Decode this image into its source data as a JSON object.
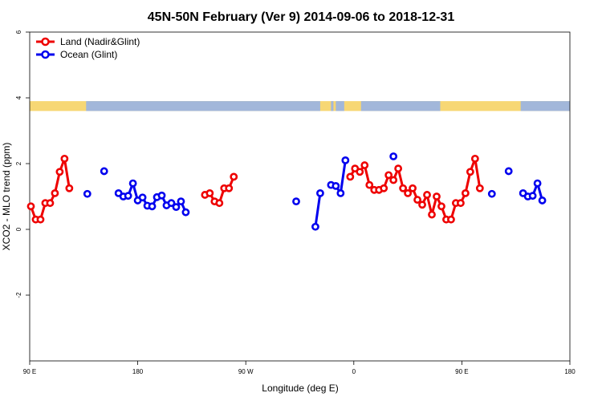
{
  "chart_data": {
    "type": "line",
    "title": "45N-50N February (Ver 9)   2014-09-06 to 2018-12-31",
    "xlabel": "Longitude (deg E)",
    "ylabel": "XCO2 - MLO trend (ppm)",
    "xlim": [
      90,
      540
    ],
    "ylim": [
      -4,
      6
    ],
    "x_ticks": [
      {
        "value": 90,
        "label": "90 E"
      },
      {
        "value": 180,
        "label": "180"
      },
      {
        "value": 270,
        "label": "90 W"
      },
      {
        "value": 360,
        "label": "0"
      },
      {
        "value": 450,
        "label": "90 E"
      },
      {
        "value": 540,
        "label": "180"
      }
    ],
    "y_ticks": [
      {
        "value": -2,
        "label": "-2"
      },
      {
        "value": 0,
        "label": "0"
      },
      {
        "value": 2,
        "label": "2"
      },
      {
        "value": 4,
        "label": "4"
      },
      {
        "value": 6,
        "label": "6"
      }
    ],
    "legend": {
      "position": "top-left",
      "entries": [
        {
          "name": "Land (Nadir&Glint)",
          "color": "#ee0000"
        },
        {
          "name": "Ocean (Glint)",
          "color": "#0000ee"
        }
      ]
    },
    "land_ocean_strip": {
      "y_range": [
        3.6,
        3.9
      ],
      "land_color": "#f7d774",
      "ocean_color": "#a2b7da",
      "ocean_spans": [
        [
          137,
          332
        ],
        [
          341,
          343
        ],
        [
          345,
          352
        ],
        [
          366,
          432
        ],
        [
          499,
          540
        ]
      ]
    },
    "series": [
      {
        "name": "Land (Nadir&Glint)",
        "color": "#ee0000",
        "segments": [
          [
            [
              91,
              0.7
            ],
            [
              95,
              0.3
            ],
            [
              99,
              0.3
            ],
            [
              103,
              0.8
            ],
            [
              107,
              0.8
            ],
            [
              111,
              1.1
            ],
            [
              115,
              1.75
            ],
            [
              119,
              2.15
            ],
            [
              123,
              1.25
            ]
          ],
          [
            [
              236,
              1.05
            ],
            [
              240,
              1.1
            ],
            [
              244,
              0.85
            ],
            [
              248,
              0.8
            ],
            [
              252,
              1.25
            ],
            [
              256,
              1.25
            ],
            [
              260,
              1.6
            ]
          ],
          [
            [
              357,
              1.6
            ],
            [
              361,
              1.85
            ],
            [
              365,
              1.75
            ],
            [
              369,
              1.95
            ],
            [
              373,
              1.35
            ],
            [
              377,
              1.2
            ],
            [
              381,
              1.2
            ],
            [
              385,
              1.25
            ],
            [
              389,
              1.65
            ],
            [
              393,
              1.5
            ],
            [
              397,
              1.85
            ],
            [
              401,
              1.25
            ],
            [
              405,
              1.1
            ],
            [
              409,
              1.25
            ],
            [
              413,
              0.9
            ],
            [
              417,
              0.75
            ],
            [
              421,
              1.05
            ],
            [
              425,
              0.45
            ],
            [
              429,
              1.0
            ],
            [
              433,
              0.7
            ],
            [
              437,
              0.3
            ],
            [
              441,
              0.3
            ],
            [
              445,
              0.8
            ],
            [
              449,
              0.8
            ],
            [
              453,
              1.1
            ],
            [
              457,
              1.75
            ],
            [
              461,
              2.15
            ],
            [
              465,
              1.25
            ]
          ]
        ]
      },
      {
        "name": "Ocean (Glint)",
        "color": "#0000ee",
        "segments": [
          [
            [
              138,
              1.08
            ]
          ],
          [
            [
              152,
              1.77
            ]
          ],
          [
            [
              164,
              1.1
            ],
            [
              168,
              1.0
            ],
            [
              172,
              1.02
            ],
            [
              176,
              1.4
            ],
            [
              180,
              0.88
            ],
            [
              184,
              0.97
            ],
            [
              188,
              0.72
            ],
            [
              192,
              0.7
            ],
            [
              196,
              0.98
            ],
            [
              200,
              1.03
            ],
            [
              204,
              0.73
            ],
            [
              208,
              0.8
            ],
            [
              212,
              0.68
            ],
            [
              216,
              0.85
            ],
            [
              220,
              0.52
            ]
          ],
          [
            [
              312,
              0.85
            ]
          ],
          [
            [
              328,
              0.08
            ],
            [
              332,
              1.1
            ]
          ],
          [
            [
              341,
              1.35
            ],
            [
              345,
              1.32
            ],
            [
              349,
              1.1
            ],
            [
              353,
              2.1
            ]
          ],
          [
            [
              393,
              2.22
            ]
          ],
          [
            [
              475,
              1.08
            ]
          ],
          [
            [
              489,
              1.77
            ]
          ],
          [
            [
              501,
              1.1
            ],
            [
              505,
              1.0
            ],
            [
              509,
              1.02
            ],
            [
              513,
              1.4
            ],
            [
              517,
              0.88
            ]
          ]
        ]
      }
    ]
  }
}
